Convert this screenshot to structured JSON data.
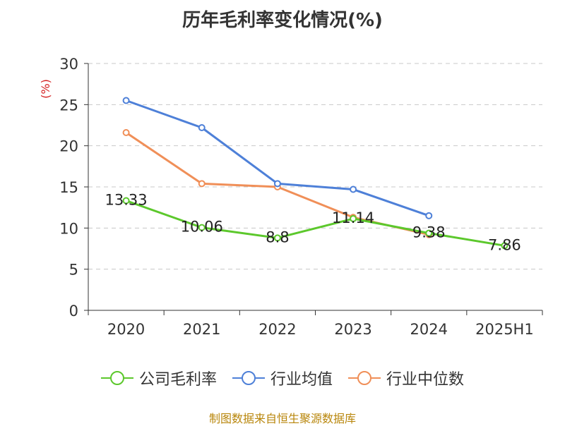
{
  "chart_data": {
    "type": "line",
    "title": "历年毛利率变化情况(%)",
    "ylabel": "(%)",
    "xlabel": "",
    "categories": [
      "2020",
      "2021",
      "2022",
      "2023",
      "2024",
      "2025H1"
    ],
    "ylim": [
      0,
      30
    ],
    "yticks": [
      0,
      5,
      10,
      15,
      20,
      25,
      30
    ],
    "grid": true,
    "legend_position": "bottom",
    "series": [
      {
        "name": "公司毛利率",
        "color": "#5cc82c",
        "values": [
          13.33,
          10.06,
          8.8,
          11.14,
          9.38,
          7.86
        ],
        "labels": [
          "13.33",
          "10.06",
          "8.8",
          "11.14",
          "9.38",
          "7.86"
        ]
      },
      {
        "name": "行业均值",
        "color": "#4e80d8",
        "values": [
          25.5,
          22.2,
          15.4,
          14.7,
          11.5,
          null
        ]
      },
      {
        "name": "行业中位数",
        "color": "#f08f58",
        "values": [
          21.6,
          15.4,
          15.0,
          11.3,
          9.2,
          null
        ]
      }
    ]
  },
  "source": "制图数据来自恒生聚源数据库"
}
